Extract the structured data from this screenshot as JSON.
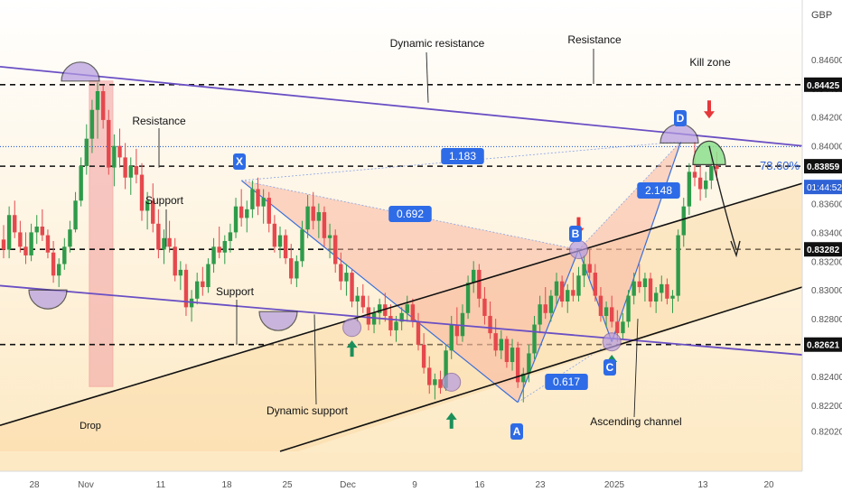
{
  "header": {
    "currency": "GBP"
  },
  "colors": {
    "bg_top": "#ffffff",
    "bg_bottom": "#fde9c3",
    "candle_up": "#2e9b4a",
    "candle_down": "#e5484d",
    "channel": "#111111",
    "trendline": "#6a4fc4",
    "pattern_fill": "#f7b6a0",
    "pattern_line": "#3b6fd8",
    "badge": "#2e6be6",
    "blue_dotted": "#2e62d6",
    "kill_zone": "#8ee08f",
    "red_arrow": "#e5383b",
    "green_arrow": "#1a8f5a",
    "drop_fill": "#f3a6a6"
  },
  "chart_data": {
    "type": "candlestick",
    "pair_currency": "GBP",
    "x_labels": [
      "28",
      "Nov",
      "11",
      "18",
      "25",
      "Dec",
      "9",
      "16",
      "23",
      "2025",
      "13",
      "20"
    ],
    "y_ticks": [
      0.846,
      0.844,
      0.842,
      0.84,
      0.836,
      0.834,
      0.832,
      0.83,
      0.828,
      0.826,
      0.824,
      0.822,
      0.8202
    ],
    "y_tick_labels": [
      "0.84600",
      "0.84400",
      "0.84200",
      "0.84000",
      "0.83600",
      "0.83400",
      "0.83200",
      "0.83000",
      "0.82800",
      "0.82600",
      "0.82400",
      "0.82200",
      "0.82020"
    ],
    "ylim": [
      0.8188,
      0.8495
    ],
    "price_levels": [
      {
        "value": 0.84425,
        "label": "0.84425"
      },
      {
        "value": 0.83859,
        "label": "0.83859"
      },
      {
        "value": 0.83282,
        "label": "0.83282"
      },
      {
        "value": 0.82621,
        "label": "0.82621"
      }
    ],
    "current_price": {
      "value": 0.83859,
      "label": "0.83859",
      "countdown": "01:44:52"
    },
    "blue_dotted_level": 0.83995,
    "fib_label": "78.60%",
    "harmonic_points": {
      "X": 0.8376,
      "A": 0.8222,
      "B": 0.8328,
      "C": 0.8264,
      "D": 0.8403
    },
    "ratios": [
      "1.183",
      "0.692",
      "2.148",
      "0.617"
    ],
    "annotations": {
      "dynamic_resistance": "Dynamic resistance",
      "resistance_top": "Resistance",
      "kill_zone": "Kill zone",
      "resistance_left": "Resistance",
      "support_1": "Support",
      "support_2": "Support",
      "dynamic_support": "Dynamic support",
      "ascending_channel": "Ascending channel",
      "drop": "Drop"
    },
    "candles": [
      [
        0.8335,
        0.8345,
        0.8322,
        0.8328
      ],
      [
        0.8328,
        0.8358,
        0.8322,
        0.8352
      ],
      [
        0.8352,
        0.8362,
        0.8336,
        0.834
      ],
      [
        0.834,
        0.8348,
        0.8326,
        0.833
      ],
      [
        0.833,
        0.834,
        0.8318,
        0.8324
      ],
      [
        0.8324,
        0.8346,
        0.832,
        0.834
      ],
      [
        0.834,
        0.8352,
        0.8332,
        0.8344
      ],
      [
        0.8344,
        0.8356,
        0.8334,
        0.8338
      ],
      [
        0.8338,
        0.8342,
        0.8322,
        0.8326
      ],
      [
        0.8326,
        0.8334,
        0.8305,
        0.831
      ],
      [
        0.831,
        0.8322,
        0.8302,
        0.8318
      ],
      [
        0.8318,
        0.8336,
        0.8314,
        0.833
      ],
      [
        0.833,
        0.8348,
        0.8326,
        0.8342
      ],
      [
        0.8342,
        0.8368,
        0.834,
        0.8362
      ],
      [
        0.8362,
        0.8392,
        0.8358,
        0.8386
      ],
      [
        0.8386,
        0.8415,
        0.838,
        0.8405
      ],
      [
        0.8405,
        0.8432,
        0.8395,
        0.8425
      ],
      [
        0.8425,
        0.8444,
        0.8405,
        0.8438
      ],
      [
        0.8438,
        0.8442,
        0.8412,
        0.8418
      ],
      [
        0.8418,
        0.8425,
        0.838,
        0.8385
      ],
      [
        0.8385,
        0.8408,
        0.8372,
        0.84
      ],
      [
        0.84,
        0.8412,
        0.8385,
        0.8392
      ],
      [
        0.8392,
        0.8402,
        0.837,
        0.8378
      ],
      [
        0.8378,
        0.8392,
        0.8366,
        0.8386
      ],
      [
        0.8386,
        0.8398,
        0.8374,
        0.838
      ],
      [
        0.838,
        0.8388,
        0.8348,
        0.8355
      ],
      [
        0.8355,
        0.8368,
        0.8342,
        0.8362
      ],
      [
        0.8362,
        0.8374,
        0.834,
        0.8346
      ],
      [
        0.8346,
        0.8356,
        0.8322,
        0.8328
      ],
      [
        0.8328,
        0.8342,
        0.8318,
        0.8336
      ],
      [
        0.8336,
        0.8348,
        0.8326,
        0.833
      ],
      [
        0.833,
        0.8336,
        0.8306,
        0.831
      ],
      [
        0.831,
        0.832,
        0.83,
        0.8314
      ],
      [
        0.8314,
        0.8318,
        0.8282,
        0.8288
      ],
      [
        0.8288,
        0.83,
        0.8278,
        0.8294
      ],
      [
        0.8294,
        0.8312,
        0.829,
        0.8306
      ],
      [
        0.8306,
        0.8316,
        0.8296,
        0.8302
      ],
      [
        0.8302,
        0.8322,
        0.8298,
        0.8318
      ],
      [
        0.8318,
        0.8336,
        0.8312,
        0.833
      ],
      [
        0.833,
        0.8344,
        0.8322,
        0.8326
      ],
      [
        0.8326,
        0.8338,
        0.8318,
        0.8334
      ],
      [
        0.8334,
        0.8346,
        0.8326,
        0.834
      ],
      [
        0.834,
        0.8364,
        0.8336,
        0.8358
      ],
      [
        0.8358,
        0.837,
        0.8344,
        0.835
      ],
      [
        0.835,
        0.8362,
        0.834,
        0.8356
      ],
      [
        0.8356,
        0.8376,
        0.835,
        0.837
      ],
      [
        0.837,
        0.8378,
        0.8352,
        0.8358
      ],
      [
        0.8358,
        0.837,
        0.8346,
        0.8364
      ],
      [
        0.8364,
        0.8368,
        0.834,
        0.8346
      ],
      [
        0.8346,
        0.8352,
        0.8326,
        0.833
      ],
      [
        0.833,
        0.8344,
        0.8322,
        0.8338
      ],
      [
        0.8338,
        0.8342,
        0.8318,
        0.8322
      ],
      [
        0.8322,
        0.8332,
        0.8304,
        0.8308
      ],
      [
        0.8308,
        0.8324,
        0.8302,
        0.832
      ],
      [
        0.832,
        0.8348,
        0.8316,
        0.8342
      ],
      [
        0.8342,
        0.8366,
        0.8336,
        0.8358
      ],
      [
        0.8358,
        0.8368,
        0.8342,
        0.8348
      ],
      [
        0.8348,
        0.836,
        0.8336,
        0.8354
      ],
      [
        0.8354,
        0.8358,
        0.833,
        0.8336
      ],
      [
        0.8336,
        0.8346,
        0.8322,
        0.8338
      ],
      [
        0.8338,
        0.8342,
        0.8312,
        0.8318
      ],
      [
        0.8318,
        0.8326,
        0.83,
        0.8306
      ],
      [
        0.8306,
        0.8318,
        0.8296,
        0.8312
      ],
      [
        0.8312,
        0.8314,
        0.8288,
        0.8292
      ],
      [
        0.8292,
        0.8302,
        0.8278,
        0.8296
      ],
      [
        0.8296,
        0.8304,
        0.8284,
        0.8288
      ],
      [
        0.8288,
        0.8296,
        0.8272,
        0.8276
      ],
      [
        0.8276,
        0.8288,
        0.827,
        0.8284
      ],
      [
        0.8284,
        0.8294,
        0.8276,
        0.829
      ],
      [
        0.829,
        0.8298,
        0.8278,
        0.8282
      ],
      [
        0.8282,
        0.829,
        0.8268,
        0.8272
      ],
      [
        0.8272,
        0.8282,
        0.8264,
        0.8278
      ],
      [
        0.8278,
        0.8288,
        0.8272,
        0.8284
      ],
      [
        0.8284,
        0.8296,
        0.8278,
        0.829
      ],
      [
        0.829,
        0.8294,
        0.8274,
        0.8278
      ],
      [
        0.8278,
        0.8284,
        0.8258,
        0.8262
      ],
      [
        0.8262,
        0.827,
        0.8242,
        0.8246
      ],
      [
        0.8246,
        0.8254,
        0.8228,
        0.8234
      ],
      [
        0.8234,
        0.8242,
        0.8224,
        0.8238
      ],
      [
        0.8238,
        0.8244,
        0.8228,
        0.8232
      ],
      [
        0.8232,
        0.8262,
        0.823,
        0.8258
      ],
      [
        0.8258,
        0.8282,
        0.8252,
        0.8276
      ],
      [
        0.8276,
        0.8288,
        0.8262,
        0.8268
      ],
      [
        0.8268,
        0.829,
        0.8264,
        0.8284
      ],
      [
        0.8284,
        0.831,
        0.828,
        0.8305
      ],
      [
        0.8305,
        0.832,
        0.8298,
        0.8314
      ],
      [
        0.8314,
        0.8318,
        0.8288,
        0.8294
      ],
      [
        0.8294,
        0.8302,
        0.8276,
        0.8282
      ],
      [
        0.8282,
        0.8292,
        0.8266,
        0.827
      ],
      [
        0.827,
        0.828,
        0.8254,
        0.8258
      ],
      [
        0.8258,
        0.8272,
        0.8252,
        0.8266
      ],
      [
        0.8266,
        0.8268,
        0.8246,
        0.825
      ],
      [
        0.825,
        0.8266,
        0.8244,
        0.826
      ],
      [
        0.826,
        0.8264,
        0.8232,
        0.8236
      ],
      [
        0.8236,
        0.8246,
        0.8222,
        0.8242
      ],
      [
        0.8242,
        0.8262,
        0.8236,
        0.8256
      ],
      [
        0.8256,
        0.8282,
        0.8252,
        0.8276
      ],
      [
        0.8276,
        0.8296,
        0.827,
        0.829
      ],
      [
        0.829,
        0.8302,
        0.828,
        0.8284
      ],
      [
        0.8284,
        0.83,
        0.8278,
        0.8296
      ],
      [
        0.8296,
        0.8312,
        0.829,
        0.8306
      ],
      [
        0.8306,
        0.831,
        0.8288,
        0.8292
      ],
      [
        0.8292,
        0.8304,
        0.8284,
        0.83
      ],
      [
        0.83,
        0.8312,
        0.8292,
        0.8296
      ],
      [
        0.8296,
        0.8316,
        0.8292,
        0.831
      ],
      [
        0.831,
        0.8324,
        0.8302,
        0.8318
      ],
      [
        0.8318,
        0.8328,
        0.8308,
        0.8312
      ],
      [
        0.8312,
        0.8318,
        0.8292,
        0.8296
      ],
      [
        0.8296,
        0.8302,
        0.8278,
        0.8282
      ],
      [
        0.8282,
        0.8292,
        0.8274,
        0.8288
      ],
      [
        0.8288,
        0.8296,
        0.8274,
        0.8278
      ],
      [
        0.8278,
        0.8286,
        0.8264,
        0.827
      ],
      [
        0.827,
        0.8284,
        0.8266,
        0.8278
      ],
      [
        0.8278,
        0.83,
        0.8274,
        0.8296
      ],
      [
        0.8296,
        0.8312,
        0.829,
        0.8306
      ],
      [
        0.8306,
        0.8318,
        0.8298,
        0.8302
      ],
      [
        0.8302,
        0.8312,
        0.8292,
        0.8308
      ],
      [
        0.8308,
        0.8312,
        0.8288,
        0.8292
      ],
      [
        0.8292,
        0.8302,
        0.8284,
        0.8298
      ],
      [
        0.8298,
        0.831,
        0.8292,
        0.8304
      ],
      [
        0.8304,
        0.8308,
        0.829,
        0.8294
      ],
      [
        0.8294,
        0.83,
        0.8284,
        0.8296
      ],
      [
        0.8296,
        0.8342,
        0.8292,
        0.8338
      ],
      [
        0.8338,
        0.8364,
        0.833,
        0.8358
      ],
      [
        0.8358,
        0.8388,
        0.8352,
        0.8382
      ],
      [
        0.8382,
        0.8403,
        0.8372,
        0.8378
      ],
      [
        0.8378,
        0.8386,
        0.8362,
        0.837
      ],
      [
        0.837,
        0.8382,
        0.8364,
        0.8376
      ],
      [
        0.8376,
        0.8392,
        0.837,
        0.8386
      ],
      [
        0.8386,
        0.8396,
        0.8376,
        0.8384
      ]
    ]
  }
}
